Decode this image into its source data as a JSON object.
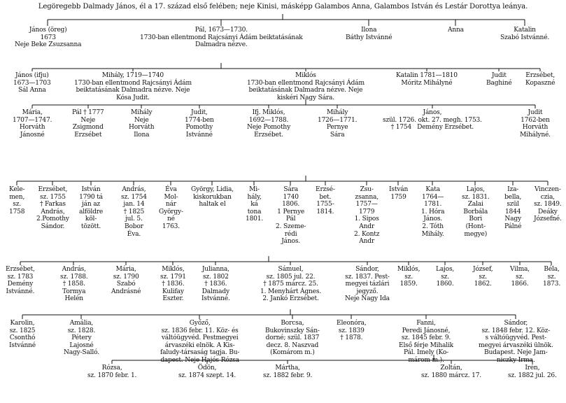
{
  "header": "Legöregebb Dalmady János, él a 17. század első felében; neje Kinisi, másképp Galambos Anna, Galambos István és Lestár Dorottya leánya.",
  "generations": [
    [
      "János (öreg)\n1673\nNeje Beke Zsuzsanna",
      "Pál, 1673—1730.\n1730-ban ellentmond Rajcsányi Ádám beiktatásának\nDalmadra nézve.",
      "Ilona\nBáthy Istvánné",
      "Anna",
      "Katalin\nSzabó Istvánné."
    ],
    [
      "János (ifju)\n1673—1703\nSál Anna",
      "Mihály, 1719—1740\n1730-ban ellentmond Rajcsányi Ádám\nbeiktatásának Dalmadra nézve. Neje\nKósa Judit.",
      "Miklós\n1730-ban ellentmond Rajcsányi Ádám\nbeiktatásának Dalmadra nézve. Neje\nkiskéri Nagy Sára.",
      "Katalin 1781—1810\nMóritz Mihályné",
      "Judit\nBaghiné",
      "Erzsébet,\nKopaszné"
    ],
    [
      "Mária,\n1707—1747.\nHorváth\nJánosné",
      "Pál † 1777\nNeje\nZsigmond\nErzsébet",
      "Mihály\nNeje\nHorváth\nIlona",
      "Judit,\n1774-ben\nPomothy\nIstvánné",
      "Ifj. Miklós,\n1692—1788.\nNeje Pomothy\nErzsébet.",
      "Mihály\n1726—1771.\nPernye\nSára",
      "János,\nszül. 1726. okt. 27. megh. 1753.\n† 1754   Demény Erzsébet.",
      "Judit\n1762-ben\nHorváth\nMihályné."
    ],
    [
      "Kele-\nmen,\nsz.\n1758",
      "Erzsébet,\nsz. 1755\n† Farkas\nAndrás,\n2.Pomothy\nSándor.",
      "István\n1790 tá\nján az\nalföldre\nköl-\ntözött.",
      "András,\nsz. 1754\njan. 14\n† 1825\njul. 5.\nBobor\nÉva.",
      "Éva\nMol-\nnár\nGyörgy-\nné\n1763.",
      "György, Lidia,\nkiskorukban\nhaltak el",
      "Mi-\nhály,\nká\ntona\n1801.",
      "Sára\n1740\n1806.\n1 Pernye\nPál\n2. Szeme-\nrédi\nJános.",
      "Erzsé-\nbet.\n1755-\n1814.",
      "Zsu-\nzsanna,\n1757—\n1779\n1. Sipos\nAndr\n2. Kontz\nAndr",
      "István\n1759",
      "Kata\n1764—\n1781.\n1. Hóra\nJános.\n2. Tóth\nMihály.",
      "Lajos,\nsz. 1831.\nZalai\nBorbála\nBori\n(Hont-\nmegye)",
      "Iza-\nbella,\nszül\n1844\nNagy\nPálné",
      "Vinczen-\nczia,\nsz. 1849.\nDeáky\nJózsefné."
    ],
    [
      "Erzsébet,\nsz. 1783\nDemény\nIstvánné.",
      "András,\nsz. 1788.\n† 1858.\nTormya\nHelén",
      "Mária,\nsz. 1790\nSzabó\nAndrásné",
      "Miklós,\nsz. 1791\n† 1836.\nKulifay\nEszter.",
      "Julianna,\nsz. 1802\n† 1836.\nDalmady\nIstvánné.",
      "Sámuel,\nsz. 1805 jul. 22.\n† 1875 márcz. 25.\n1. Menyhárt Ágnes.\n2. Jankó Erzsébet.",
      "Sándor,\nsz. 1837. Pest-\nmegyei tázlári\njegyző.\nNeje Nagy Ida",
      "Miklós,\nsz.\n1859.",
      "Lajos,\nsz.\n1860.",
      "József,\nsz.\n1862.",
      "Vilma,\nsz.\n1866.",
      "Béla,\nsz.\n1873."
    ],
    [
      "Karolin,\nsz. 1825\nCsonthó\nIstvánné",
      "Amália,\nsz. 1828.\nPétery\nLajosné\nNagy-Salló.",
      "Győző,\nsz. 1836 febr. 11. Köz- és\nváltóügyvéd. Pestmegyei\nárvaszéki elnök. A Kis-\nfaludy-társaság tagja. Bu-\ndapest. Neje Hajós Rózsa",
      "Borcsa,\nBukovinszky Sán-\ndorné; szül. 1837\ndecz. 8. Naszvad\n(Komárom m.)",
      "Eleonóra,\nsz. 1839\n† 1878.",
      "Fanni,\nPeredi Jánosné,\nsz. 1845 febr. 9.\nElső férje Mihalik\nPál. Imely (Ko-\nmárom m.).",
      "Sándor,\nsz. 1848 febr. 12. Köz-\ns váltóügyvéd. Pest-\nmegyei árvaszéki ülnök.\nBudapest. Neje Jam-\nniczky Irma."
    ],
    [
      "Rózsa,\nsz. 1870 febr. 1.",
      "Ödön,\nsz. 1874 szept. 14.",
      "Mártha,\nsz. 1882 febr. 9.",
      "Zoltán,\nsz. 1880 márcz. 17.",
      "Irén,\nsz. 1882 jul. 26."
    ]
  ]
}
